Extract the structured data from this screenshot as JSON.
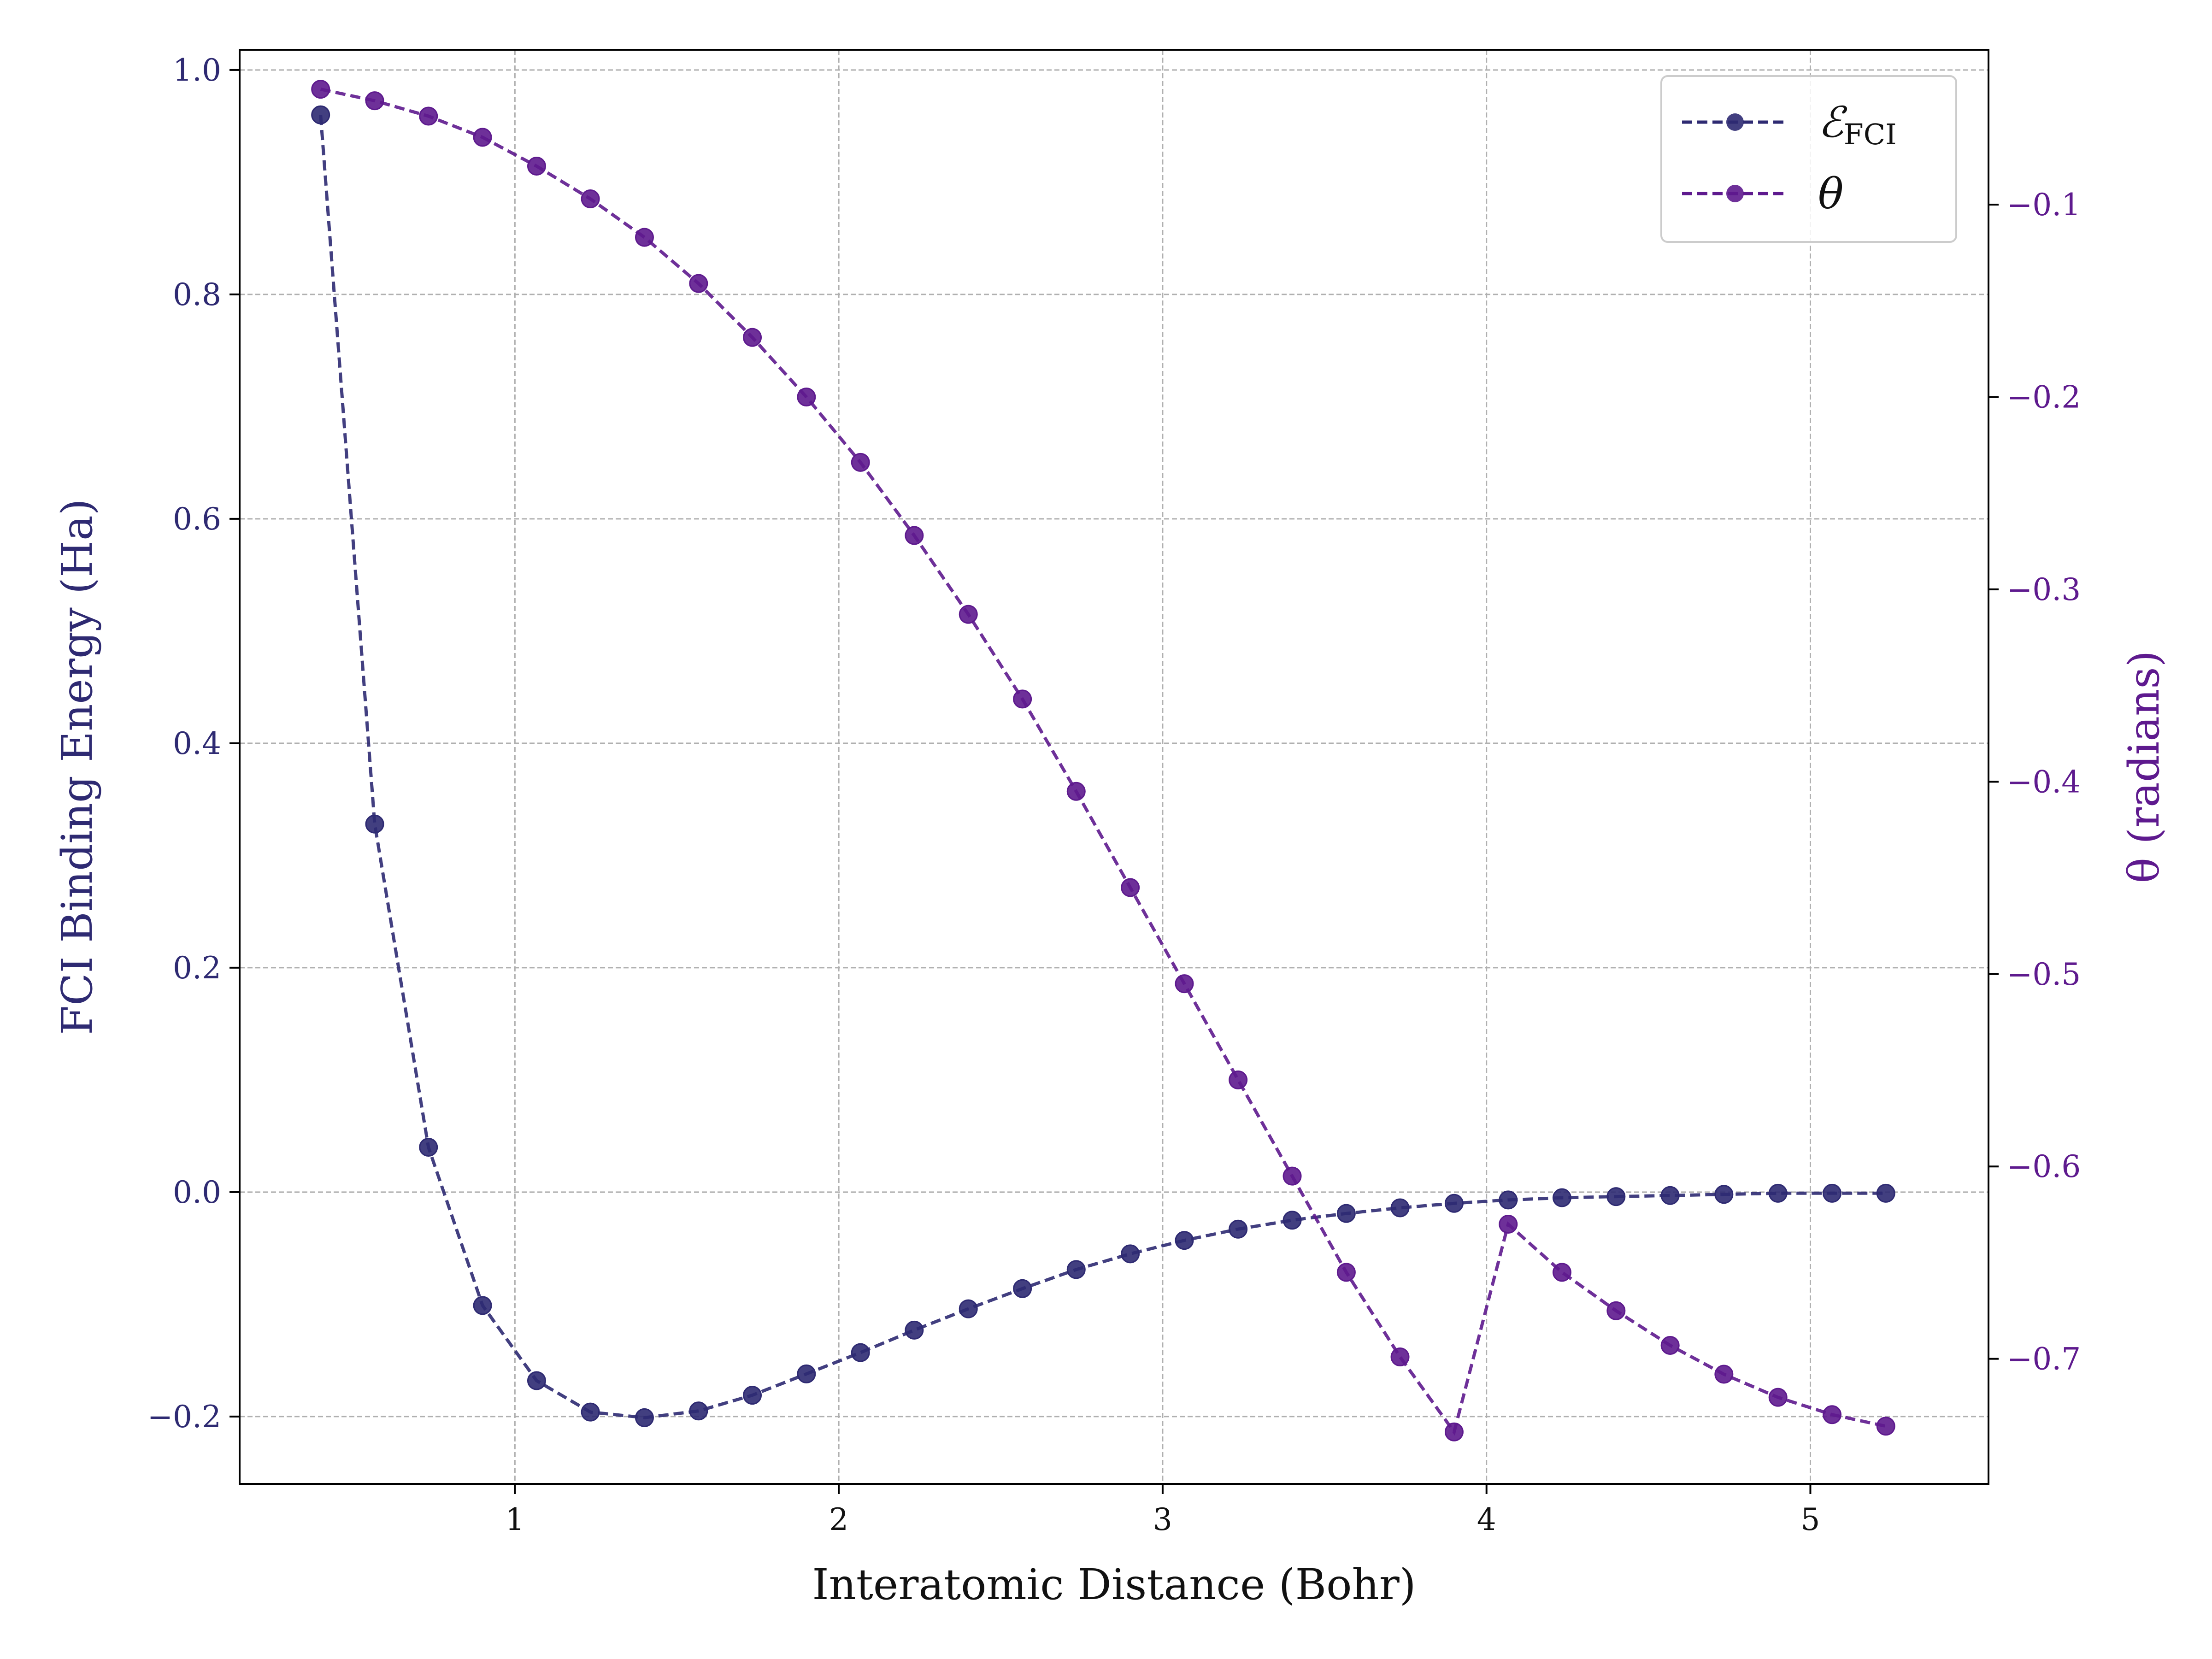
{
  "chart_data": {
    "type": "line",
    "xlabel": "Interatomic Distance (Bohr)",
    "ylabel_left": "FCI Binding Energy (Ha)",
    "ylabel_right": "θ (radians)",
    "xlim": [
      0.15,
      5.55
    ],
    "ylim_left": [
      -0.26,
      1.018
    ],
    "ylim_right": [
      -0.765,
      -0.0195
    ],
    "x_ticks": [
      1,
      2,
      3,
      4,
      5
    ],
    "x_tick_labels": [
      "1",
      "2",
      "3",
      "4",
      "5"
    ],
    "y_left_ticks": [
      -0.2,
      0.0,
      0.2,
      0.4,
      0.6,
      0.8,
      1.0
    ],
    "y_left_tick_labels": [
      "−0.2",
      "0.0",
      "0.2",
      "0.4",
      "0.6",
      "0.8",
      "1.0"
    ],
    "y_right_ticks": [
      -0.7,
      -0.6,
      -0.5,
      -0.4,
      -0.3,
      -0.2,
      -0.1
    ],
    "y_right_tick_labels": [
      "−0.7",
      "−0.6",
      "−0.5",
      "−0.4",
      "−0.3",
      "−0.2",
      "−0.1"
    ],
    "grid": true,
    "legend_position": "top-right",
    "series": [
      {
        "name": "E_FCI",
        "legend_main": "ℰ",
        "legend_sub": "FCI",
        "axis": "left",
        "color": "#2e2a72",
        "style": "dashed",
        "marker": "circle",
        "x": [
          0.4,
          0.567,
          0.733,
          0.9,
          1.067,
          1.233,
          1.4,
          1.567,
          1.733,
          1.9,
          2.067,
          2.233,
          2.4,
          2.567,
          2.733,
          2.9,
          3.067,
          3.233,
          3.4,
          3.567,
          3.733,
          3.9,
          4.067,
          4.233,
          4.4,
          4.567,
          4.733,
          4.9,
          5.067,
          5.233
        ],
        "y": [
          0.96,
          0.328,
          0.04,
          -0.101,
          -0.168,
          -0.196,
          -0.201,
          -0.195,
          -0.181,
          -0.162,
          -0.143,
          -0.123,
          -0.104,
          -0.086,
          -0.069,
          -0.055,
          -0.043,
          -0.033,
          -0.025,
          -0.019,
          -0.014,
          -0.01,
          -0.007,
          -0.005,
          -0.004,
          -0.003,
          -0.002,
          -0.001,
          -0.001,
          -0.001
        ]
      },
      {
        "name": "θ",
        "legend_main": "θ",
        "legend_sub": "",
        "axis": "right",
        "color": "#5e1a8e",
        "style": "dashed",
        "marker": "circle",
        "x": [
          0.4,
          0.567,
          0.733,
          0.9,
          1.067,
          1.233,
          1.4,
          1.567,
          1.733,
          1.9,
          2.067,
          2.233,
          2.4,
          2.567,
          2.733,
          2.9,
          3.067,
          3.233,
          3.4,
          3.567,
          3.733,
          3.9,
          4.067,
          4.233,
          4.4,
          4.567,
          4.733,
          4.9,
          5.067,
          5.233
        ],
        "y": [
          -0.04,
          -0.046,
          -0.054,
          -0.065,
          -0.08,
          -0.097,
          -0.117,
          -0.141,
          -0.169,
          -0.2,
          -0.234,
          -0.272,
          -0.313,
          -0.357,
          -0.405,
          -0.455,
          -0.505,
          -0.555,
          -0.605,
          -0.655,
          -0.699,
          -0.738,
          -0.63,
          -0.655,
          -0.675,
          -0.693,
          -0.708,
          -0.72,
          -0.729,
          -0.735
        ]
      }
    ]
  }
}
